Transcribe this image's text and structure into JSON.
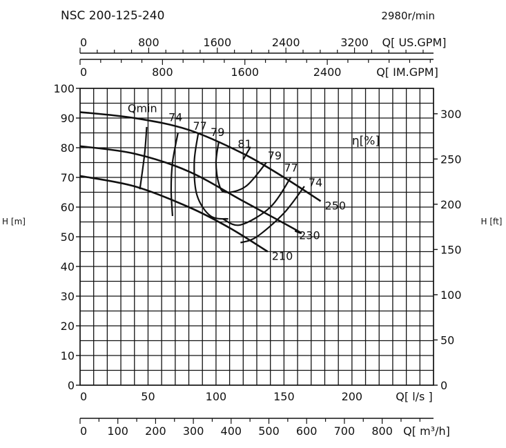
{
  "chart_data": {
    "type": "line",
    "title": "NSC 200-125-240",
    "speed": "2980r/min",
    "xlabel": "Q[ l/s ]",
    "ylabel_left": "H [m]",
    "ylabel_right": "H [ft]",
    "eff_label": "η[%]",
    "qmin_label": "Qmin",
    "xlim": [
      0,
      260
    ],
    "ylim": [
      0,
      100
    ],
    "x_ticks": [
      "0",
      "50",
      "100",
      "150",
      "200"
    ],
    "y_ticks": [
      "0",
      "10",
      "20",
      "30",
      "40",
      "50",
      "60",
      "70",
      "80",
      "90",
      "100"
    ],
    "ft_ticks": [
      "0",
      "50",
      "100",
      "150",
      "200",
      "250",
      "300"
    ],
    "us_gpm": {
      "label": "Q[ US.GPM]",
      "ticks": [
        "0",
        "800",
        "1600",
        "2400",
        "3200"
      ]
    },
    "im_gpm": {
      "label": "Q[ IM.GPM]",
      "ticks": [
        "0",
        "800",
        "1600",
        "2400"
      ]
    },
    "m3h": {
      "label": "Q[ m³/h]",
      "ticks": [
        "0",
        "100",
        "200",
        "300",
        "400",
        "500",
        "600",
        "700",
        "800"
      ]
    },
    "series": [
      {
        "name": "250",
        "points": [
          [
            0,
            92
          ],
          [
            40,
            90
          ],
          [
            80,
            86
          ],
          [
            120,
            78
          ],
          [
            150,
            70
          ],
          [
            177,
            62
          ]
        ]
      },
      {
        "name": "230",
        "points": [
          [
            0,
            80.5
          ],
          [
            40,
            78
          ],
          [
            80,
            72
          ],
          [
            120,
            62
          ],
          [
            160,
            52
          ],
          [
            158,
            52
          ]
        ]
      },
      {
        "name": "210",
        "points": [
          [
            0,
            70.5
          ],
          [
            40,
            67
          ],
          [
            80,
            60
          ],
          [
            110,
            53
          ],
          [
            138,
            45
          ]
        ]
      }
    ],
    "qmin": [
      [
        49,
        87
      ],
      [
        47.5,
        78
      ],
      [
        44,
        66
      ]
    ],
    "efficiency_contours": [
      {
        "name": "74",
        "points": [
          [
            72,
            85
          ],
          [
            68,
            75
          ],
          [
            67,
            66
          ],
          [
            68,
            57
          ]
        ]
      },
      {
        "name": "77",
        "points": [
          [
            87,
            85
          ],
          [
            84,
            75
          ],
          [
            86,
            64
          ],
          [
            96,
            57
          ],
          [
            109,
            56
          ]
        ]
      },
      {
        "name": "79",
        "points": [
          [
            102,
            82
          ],
          [
            100,
            75
          ],
          [
            102,
            68
          ],
          [
            107,
            65
          ],
          [
            122,
            67
          ],
          [
            137,
            75
          ]
        ]
      },
      {
        "name": "81",
        "points": [
          [
            120,
            76
          ],
          [
            125,
            80
          ]
        ]
      },
      {
        "name": "79",
        "points": [
          [
            137,
            75
          ]
        ]
      },
      {
        "name": "77",
        "points": [
          [
            155,
            70
          ],
          [
            140,
            60
          ],
          [
            118,
            54
          ],
          [
            105,
            56
          ]
        ]
      },
      {
        "name": "74",
        "points": [
          [
            165,
            67
          ],
          [
            150,
            58
          ],
          [
            130,
            50
          ],
          [
            118,
            48
          ]
        ]
      }
    ],
    "eff_values": [
      "74",
      "77",
      "79",
      "81",
      "79",
      "77",
      "74"
    ],
    "grid": true
  }
}
